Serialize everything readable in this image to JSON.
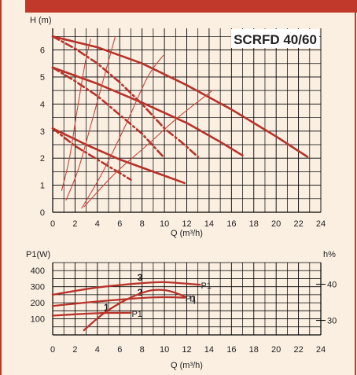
{
  "colors": {
    "background": "#fbefe2",
    "header_bar": "#c0392b",
    "frame": "#c0392b",
    "curve": "#b8322a",
    "thin_curve": "#c8453a",
    "grid": "#000000",
    "title": "#c0392b"
  },
  "chart_data": [
    {
      "type": "line",
      "title": "SCRFD 40/60",
      "ylabel": "H (m)",
      "xlabel": "Q (m³/h)",
      "xlim": [
        0,
        24
      ],
      "ylim": [
        0,
        6.8
      ],
      "x_ticks": [
        "0",
        "2",
        "4",
        "6",
        "8",
        "10",
        "12",
        "14",
        "16",
        "18",
        "20",
        "22",
        "24"
      ],
      "y_ticks": [
        "0",
        "1",
        "2",
        "3",
        "4",
        "5",
        "6"
      ],
      "grid": true,
      "series": [
        {
          "style": "solid",
          "weight": "bold",
          "points": [
            [
              0,
              6.5
            ],
            [
              4,
              6.1
            ],
            [
              8,
              5.5
            ],
            [
              12,
              4.7
            ],
            [
              16,
              3.8
            ],
            [
              20,
              2.8
            ],
            [
              22.8,
              2.05
            ]
          ]
        },
        {
          "style": "solid",
          "weight": "bold",
          "points": [
            [
              0,
              5.35
            ],
            [
              4,
              4.75
            ],
            [
              8,
              4.05
            ],
            [
              12,
              3.3
            ],
            [
              15,
              2.6
            ],
            [
              17,
              2.1
            ]
          ]
        },
        {
          "style": "solid",
          "weight": "bold",
          "points": [
            [
              0,
              3.1
            ],
            [
              3,
              2.5
            ],
            [
              6,
              1.95
            ],
            [
              9,
              1.5
            ],
            [
              11.8,
              1.08
            ]
          ]
        },
        {
          "style": "dashdot",
          "weight": "bold",
          "points": [
            [
              0,
              6.5
            ],
            [
              2,
              6.05
            ],
            [
              4,
              5.5
            ],
            [
              6,
              4.8
            ],
            [
              8,
              4.0
            ],
            [
              10,
              3.1
            ],
            [
              11.5,
              2.6
            ],
            [
              13,
              2.05
            ]
          ]
        },
        {
          "style": "dashdot",
          "weight": "bold",
          "points": [
            [
              0,
              5.35
            ],
            [
              2,
              4.85
            ],
            [
              4,
              4.3
            ],
            [
              6,
              3.6
            ],
            [
              8,
              2.9
            ],
            [
              9.9,
              2.05
            ]
          ]
        },
        {
          "style": "dashdot",
          "weight": "bold",
          "points": [
            [
              0,
              3.1
            ],
            [
              2,
              2.45
            ],
            [
              4,
              1.95
            ],
            [
              6,
              1.45
            ],
            [
              7,
              1.2
            ]
          ]
        },
        {
          "style": "solid",
          "weight": "thin",
          "points": [
            [
              0.8,
              0.8
            ],
            [
              1.5,
              2.0
            ],
            [
              2.2,
              3.8
            ],
            [
              2.9,
              5.5
            ],
            [
              3.4,
              6.4
            ]
          ]
        },
        {
          "style": "solid",
          "weight": "thin",
          "points": [
            [
              1.2,
              0.45
            ],
            [
              2.3,
              1.6
            ],
            [
              3.4,
              3.2
            ],
            [
              4.6,
              5.0
            ],
            [
              5.6,
              6.5
            ]
          ]
        },
        {
          "style": "solid",
          "weight": "thin",
          "points": [
            [
              2.6,
              0.15
            ],
            [
              4.5,
              1.5
            ],
            [
              6.5,
              3.2
            ],
            [
              8.5,
              5.0
            ],
            [
              9.9,
              5.8
            ]
          ]
        },
        {
          "style": "solid",
          "weight": "thin",
          "points": [
            [
              2.8,
              0.2
            ],
            [
              5.5,
              1.4
            ],
            [
              8.5,
              2.5
            ],
            [
              11.2,
              3.5
            ],
            [
              14.3,
              4.5
            ]
          ]
        }
      ]
    },
    {
      "type": "line",
      "ylabel": "P1(W)",
      "y2label": "h%",
      "xlabel": "Q (m³/h)",
      "xlim": [
        0,
        24
      ],
      "ylim": [
        0,
        450
      ],
      "y2lim": [
        26,
        46
      ],
      "x_ticks": [
        "0",
        "2",
        "4",
        "6",
        "8",
        "10",
        "12",
        "14",
        "16",
        "18",
        "20",
        "22",
        "24"
      ],
      "y_ticks": [
        "100",
        "200",
        "300",
        "400"
      ],
      "y2_ticks": [
        "30",
        "40"
      ],
      "grid": true,
      "series": [
        {
          "name": "3",
          "label": "P1",
          "axis": "left",
          "points": [
            [
              0,
              250
            ],
            [
              4,
              295
            ],
            [
              8,
              322
            ],
            [
              10,
              328
            ],
            [
              13.2,
              312
            ]
          ]
        },
        {
          "name": "2",
          "label": "P1",
          "axis": "left",
          "points": [
            [
              0,
              180
            ],
            [
              4,
              208
            ],
            [
              8,
              230
            ],
            [
              10,
              235
            ],
            [
              11.8,
              232
            ]
          ]
        },
        {
          "name": "1",
          "label": "P1",
          "axis": "left",
          "points": [
            [
              0,
              120
            ],
            [
              3,
              132
            ],
            [
              5,
              137
            ],
            [
              7,
              138
            ]
          ]
        },
        {
          "name": "η",
          "axis": "right",
          "points": [
            [
              2.8,
              27.3
            ],
            [
              4.5,
              31.8
            ],
            [
              6.5,
              35.6
            ],
            [
              8.5,
              38.1
            ],
            [
              10,
              38.4
            ],
            [
              11.2,
              37.4
            ],
            [
              11.9,
              36.5
            ]
          ]
        }
      ]
    }
  ]
}
